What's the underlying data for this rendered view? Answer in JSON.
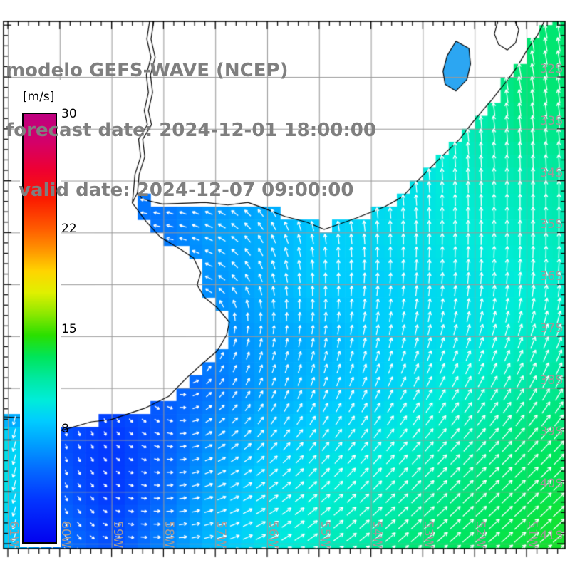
{
  "title": {
    "line1": "modelo GEFS-WAVE (NCEP)",
    "line2": "forecast date: 2024-12-01 18:00:00",
    "line3": "  valid date: 2024-12-07 09:00:00"
  },
  "colorbar": {
    "unit": "[m/s]",
    "min": 0,
    "max": 30,
    "ticks": [
      {
        "label": "30",
        "value": 30
      },
      {
        "label": "22",
        "value": 22
      },
      {
        "label": "15",
        "value": 15
      },
      {
        "label": "8",
        "value": 8
      }
    ],
    "stops": [
      [
        0.0,
        "#0202EF"
      ],
      [
        0.1,
        "#0336FF"
      ],
      [
        0.167,
        "#0468FF"
      ],
      [
        0.233,
        "#00A2FF"
      ],
      [
        0.283,
        "#00CCFF"
      ],
      [
        0.333,
        "#00EDD8"
      ],
      [
        0.383,
        "#00E9A0"
      ],
      [
        0.433,
        "#00E55A"
      ],
      [
        0.483,
        "#2ADF00"
      ],
      [
        0.533,
        "#8CE800"
      ],
      [
        0.583,
        "#E0F000"
      ],
      [
        0.633,
        "#FFD400"
      ],
      [
        0.683,
        "#FF9400"
      ],
      [
        0.733,
        "#FF5A00"
      ],
      [
        0.8,
        "#FB1C00"
      ],
      [
        0.867,
        "#EF0030"
      ],
      [
        0.933,
        "#D40068"
      ],
      [
        1.0,
        "#BE0080"
      ]
    ]
  },
  "map": {
    "lat_labels": [
      "32S",
      "33S",
      "34S",
      "35S",
      "36S",
      "37S",
      "38S",
      "39S",
      "40S",
      "41S"
    ],
    "lat_values": [
      32,
      33,
      34,
      35,
      36,
      37,
      38,
      39,
      40,
      41
    ],
    "lon_labels": [
      "61W",
      "60W",
      "59W",
      "58W",
      "57W",
      "56W",
      "55W",
      "54W",
      "53W",
      "52W",
      "51W"
    ],
    "lon_values": [
      61,
      60,
      59,
      58,
      57,
      56,
      55,
      54,
      53,
      52,
      51
    ],
    "grid_color": "#999999",
    "coast_color": "#000000",
    "land_color": "#ffffff",
    "arrow_color": "#ffffff",
    "lagoon_fill": "#2CA6F2"
  },
  "field": {
    "units": "m/s",
    "cell_deg": 0.25,
    "lon_w": [
      62,
      61,
      60,
      59,
      58,
      57,
      56,
      55,
      54,
      53,
      52,
      51,
      50
    ],
    "lat_s": [
      30,
      31,
      32,
      33,
      34,
      35,
      36,
      37,
      38,
      39,
      40,
      41,
      42
    ],
    "speed_ms": [
      [
        10,
        9.5,
        9,
        8.5,
        7.5,
        7,
        7.5,
        8.5,
        9.5,
        10.5,
        11.5,
        12.5,
        12.5
      ],
      [
        10,
        9.5,
        9,
        8.5,
        7.5,
        7,
        7.5,
        8.5,
        9.5,
        10.5,
        11.5,
        12.5,
        12.5
      ],
      [
        9,
        8.5,
        8,
        7.5,
        7,
        6.5,
        7,
        8,
        9.5,
        10.5,
        11.5,
        12.5,
        12.5
      ],
      [
        8,
        7.5,
        7,
        6.5,
        6,
        6,
        6.5,
        7.5,
        9,
        10,
        11,
        12,
        12
      ],
      [
        7,
        6.5,
        6,
        5.5,
        5.5,
        6,
        7,
        8,
        9,
        9.5,
        10.5,
        11,
        11.5
      ],
      [
        6,
        6,
        5.5,
        5.5,
        5.5,
        7,
        7.5,
        8.5,
        9,
        9.5,
        10,
        10.5,
        11
      ],
      [
        5.5,
        5.5,
        5,
        5,
        5.5,
        6.5,
        7.5,
        8.5,
        8.5,
        9,
        9.5,
        10,
        10.5
      ],
      [
        5,
        5,
        4.5,
        4.5,
        5,
        6,
        7,
        7.5,
        8.5,
        9,
        9.5,
        10.5,
        11
      ],
      [
        5.5,
        5,
        4.5,
        4,
        4.5,
        5.5,
        7,
        8,
        8.5,
        9.5,
        10.5,
        11.5,
        12
      ],
      [
        8,
        9.5,
        4,
        3,
        4.5,
        6.5,
        8,
        9,
        9.5,
        10.5,
        11.5,
        12.5,
        13
      ],
      [
        9,
        9.5,
        4.5,
        3,
        5,
        7.5,
        9,
        10,
        10.5,
        11.5,
        12.5,
        13,
        13.5
      ],
      [
        8.5,
        8.5,
        5.5,
        4,
        6,
        8,
        9.5,
        10.5,
        11.5,
        12.5,
        13,
        13.5,
        14
      ],
      [
        8.5,
        8.5,
        6,
        4.5,
        6.5,
        8.5,
        10,
        11,
        12,
        12.5,
        13,
        13.5,
        14
      ]
    ],
    "dir_deg_to": [
      [
        270,
        270,
        280,
        285,
        290,
        300,
        340,
        350,
        350,
        350,
        350,
        350,
        350
      ],
      [
        270,
        270,
        280,
        285,
        290,
        300,
        340,
        350,
        350,
        350,
        350,
        350,
        350
      ],
      [
        270,
        270,
        280,
        285,
        290,
        300,
        335,
        348,
        352,
        352,
        352,
        350,
        350
      ],
      [
        270,
        270,
        278,
        283,
        288,
        295,
        330,
        345,
        352,
        355,
        355,
        355,
        355
      ],
      [
        270,
        270,
        275,
        280,
        285,
        290,
        320,
        345,
        350,
        355,
        358,
        0,
        0
      ],
      [
        210,
        220,
        255,
        272,
        283,
        295,
        330,
        350,
        355,
        0,
        0,
        0,
        0
      ],
      [
        195,
        200,
        228,
        250,
        270,
        300,
        345,
        0,
        5,
        5,
        5,
        5,
        5
      ],
      [
        190,
        193,
        185,
        175,
        165,
        20,
        10,
        10,
        12,
        15,
        18,
        20,
        22
      ],
      [
        190,
        192,
        180,
        158,
        130,
        40,
        25,
        22,
        25,
        28,
        30,
        30,
        28
      ],
      [
        193,
        196,
        170,
        140,
        108,
        60,
        42,
        38,
        38,
        40,
        42,
        42,
        42
      ],
      [
        196,
        199,
        158,
        120,
        90,
        70,
        55,
        48,
        45,
        45,
        46,
        46,
        46
      ],
      [
        199,
        202,
        150,
        108,
        88,
        75,
        62,
        55,
        50,
        48,
        48,
        48,
        48
      ],
      [
        200,
        202,
        145,
        105,
        85,
        75,
        62,
        55,
        50,
        48,
        48,
        48,
        48
      ]
    ]
  },
  "coast": {
    "mainland": [
      [
        50.62,
        30.88
      ],
      [
        50.67,
        30.95
      ],
      [
        50.78,
        31.18
      ],
      [
        50.99,
        31.48
      ],
      [
        51.19,
        31.82
      ],
      [
        51.4,
        32.1
      ],
      [
        51.67,
        32.44
      ],
      [
        52.02,
        32.85
      ],
      [
        52.29,
        33.2
      ],
      [
        52.64,
        33.54
      ],
      [
        52.91,
        33.81
      ],
      [
        53.19,
        34.09
      ],
      [
        53.39,
        34.31
      ],
      [
        53.73,
        34.5
      ],
      [
        54.28,
        34.72
      ],
      [
        54.9,
        34.94
      ],
      [
        55.24,
        34.8
      ],
      [
        55.66,
        34.69
      ],
      [
        56.04,
        34.54
      ],
      [
        56.37,
        34.42
      ],
      [
        56.76,
        34.47
      ],
      [
        57.2,
        34.42
      ],
      [
        57.44,
        34.43
      ],
      [
        58.02,
        34.45
      ],
      [
        58.4,
        34.36
      ],
      [
        58.5,
        34.23
      ],
      [
        58.6,
        34.43
      ],
      [
        58.34,
        34.78
      ],
      [
        58.06,
        35.09
      ],
      [
        57.69,
        35.31
      ],
      [
        57.42,
        35.49
      ],
      [
        57.28,
        35.78
      ],
      [
        57.35,
        36.01
      ],
      [
        57.21,
        36.25
      ],
      [
        56.96,
        36.45
      ],
      [
        56.73,
        36.73
      ],
      [
        56.78,
        36.97
      ],
      [
        56.96,
        37.28
      ],
      [
        57.24,
        37.52
      ],
      [
        57.55,
        37.8
      ],
      [
        57.9,
        38.16
      ],
      [
        58.34,
        38.38
      ],
      [
        59.02,
        38.61
      ],
      [
        59.39,
        38.65
      ],
      [
        60.05,
        38.84
      ],
      [
        60.6,
        38.58
      ],
      [
        61.15,
        38.55
      ]
    ],
    "closure": [
      [
        61.35,
        38.5
      ],
      [
        61.35,
        30.8
      ],
      [
        50.55,
        30.8
      ]
    ],
    "river_east": [
      [
        58.18,
        30.88
      ],
      [
        58.24,
        31.27
      ],
      [
        58.16,
        31.62
      ],
      [
        58.25,
        31.96
      ],
      [
        58.21,
        32.3
      ],
      [
        58.29,
        32.65
      ],
      [
        58.23,
        32.92
      ],
      [
        58.4,
        33.2
      ],
      [
        58.36,
        33.54
      ],
      [
        58.47,
        33.88
      ],
      [
        58.5,
        34.23
      ]
    ],
    "river_west": [
      [
        58.26,
        30.88
      ],
      [
        58.32,
        31.27
      ],
      [
        58.24,
        31.62
      ],
      [
        58.33,
        31.96
      ],
      [
        58.29,
        32.3
      ],
      [
        58.37,
        32.65
      ],
      [
        58.31,
        32.92
      ],
      [
        58.48,
        33.2
      ],
      [
        58.44,
        33.54
      ],
      [
        58.55,
        33.88
      ],
      [
        58.58,
        34.23
      ],
      [
        58.6,
        34.43
      ]
    ],
    "lagoon_mirim": [
      [
        52.36,
        31.31
      ],
      [
        52.53,
        31.59
      ],
      [
        52.61,
        31.89
      ],
      [
        52.57,
        32.14
      ],
      [
        52.36,
        32.27
      ],
      [
        52.15,
        32.05
      ],
      [
        52.08,
        31.75
      ],
      [
        52.11,
        31.45
      ]
    ],
    "lagoon_patos": [
      [
        51.54,
        30.88
      ],
      [
        51.62,
        31.17
      ],
      [
        51.54,
        31.37
      ],
      [
        51.37,
        31.48
      ],
      [
        51.21,
        31.34
      ],
      [
        51.15,
        31.09
      ],
      [
        51.24,
        30.88
      ]
    ]
  }
}
